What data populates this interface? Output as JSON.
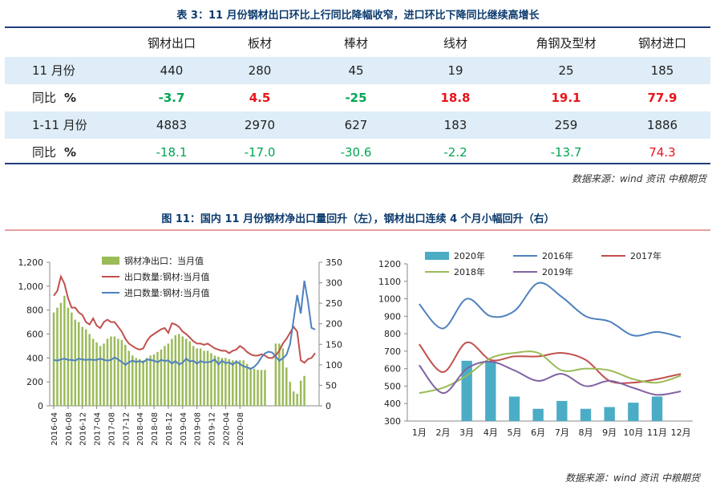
{
  "table": {
    "title": "表 3：11 月份钢材出口环比上行同比降幅收窄，进口环比下降同比继续高增长",
    "headers": [
      "钢材出口",
      "板材",
      "棒材",
      "线材",
      "角钢及型材",
      "钢材进口"
    ],
    "rows": [
      {
        "label": "11 月份",
        "unit": "",
        "values": [
          "440",
          "280",
          "45",
          "19",
          "25",
          "185"
        ],
        "colors": [
          "",
          "",
          "",
          "",
          "",
          ""
        ],
        "bold": false
      },
      {
        "label": "同比",
        "unit": "%",
        "values": [
          "-3.7",
          "4.5",
          "-25",
          "18.8",
          "19.1",
          "77.9"
        ],
        "colors": [
          "#00a651",
          "#e8141b",
          "#00a651",
          "#e8141b",
          "#e8141b",
          "#e8141b"
        ],
        "bold": true
      },
      {
        "label": "1-11 月份",
        "unit": "",
        "values": [
          "4883",
          "2970",
          "627",
          "183",
          "259",
          "1886"
        ],
        "colors": [
          "",
          "",
          "",
          "",
          "",
          ""
        ],
        "bold": false
      },
      {
        "label": "同比",
        "unit": "%",
        "values": [
          "-18.1",
          "-17.0",
          "-30.6",
          "-2.2",
          "-13.7",
          "74.3"
        ],
        "colors": [
          "#00a651",
          "#00a651",
          "#00a651",
          "#00a651",
          "#00a651",
          "#e8141b"
        ],
        "bold": false
      }
    ],
    "source": "数据来源：wind 资讯  中粮期货"
  },
  "figure": {
    "title": "图 11：国内 11 月份钢材净出口量回升（左），钢材出口连续 4 个月小幅回升（右）",
    "source": "数据来源：wind 资讯  中粮期货"
  },
  "chart_data": [
    {
      "type": "bar+line",
      "y_left_ticks": [
        "0",
        "200",
        "400",
        "600",
        "800",
        "1,000",
        "1,200"
      ],
      "y_left_range": [
        0,
        1200
      ],
      "y_right_ticks": [
        "0",
        "50",
        "100",
        "150",
        "200",
        "250",
        "300",
        "350"
      ],
      "y_right_range": [
        0,
        350
      ],
      "x_ticks": [
        "2016-04",
        "2016-08",
        "2016-12",
        "2017-04",
        "2017-08",
        "2017-12",
        "2018-04",
        "2018-08",
        "2018-12",
        "2019-04",
        "2019-08",
        "2019-12",
        "2020-04",
        "2020-08"
      ],
      "colors": {
        "bars": "#9bbb59",
        "export": "#c0504d",
        "import": "#4f81bd"
      },
      "series": [
        {
          "name": "钢材净出口：当月值",
          "axis": "left",
          "style": "bar",
          "values": [
            780,
            820,
            860,
            920,
            820,
            780,
            720,
            700,
            660,
            640,
            600,
            560,
            530,
            500,
            520,
            560,
            580,
            580,
            560,
            550,
            510,
            460,
            420,
            400,
            390,
            380,
            400,
            420,
            430,
            450,
            470,
            500,
            520,
            560,
            590,
            600,
            580,
            560,
            540,
            500,
            480,
            480,
            460,
            460,
            440,
            420,
            410,
            400,
            400,
            390,
            380,
            380,
            380,
            380,
            350,
            320,
            310,
            300,
            300,
            300,
            0,
            0,
            520,
            520,
            480,
            320,
            200,
            120,
            100,
            210,
            250
          ]
        },
        {
          "name": "出口数量:钢材:当月值",
          "axis": "left",
          "style": "line",
          "values": [
            920,
            960,
            1080,
            1020,
            900,
            820,
            820,
            780,
            760,
            700,
            680,
            730,
            670,
            650,
            700,
            720,
            700,
            700,
            660,
            620,
            560,
            520,
            500,
            480,
            470,
            480,
            540,
            580,
            600,
            620,
            640,
            650,
            610,
            690,
            680,
            660,
            620,
            600,
            570,
            540,
            520,
            520,
            510,
            520,
            500,
            480,
            470,
            460,
            460,
            440,
            460,
            470,
            500,
            480,
            450,
            430,
            420,
            420,
            430,
            420,
            400,
            400,
            420,
            460,
            520,
            560,
            610,
            660,
            620,
            380,
            360,
            390,
            400,
            440
          ]
        },
        {
          "name": "进口数量:钢材:当月值",
          "axis": "right",
          "style": "line",
          "values": [
            112,
            110,
            113,
            115,
            112,
            112,
            110,
            115,
            113,
            112,
            113,
            112,
            112,
            115,
            112,
            110,
            112,
            118,
            113,
            107,
            100,
            106,
            110,
            107,
            109,
            106,
            113,
            112,
            110,
            106,
            112,
            109,
            111,
            103,
            109,
            101,
            105,
            115,
            108,
            110,
            103,
            109,
            106,
            106,
            108,
            113,
            101,
            110,
            104,
            106,
            100,
            108,
            102,
            96,
            94,
            90,
            95,
            104,
            118,
            128,
            132,
            130,
            120,
            110,
            116,
            124,
            150,
            210,
            270,
            225,
            305,
            255,
            190,
            186
          ]
        }
      ]
    },
    {
      "type": "bar+line",
      "y_ticks": [
        "300",
        "400",
        "500",
        "600",
        "700",
        "800",
        "900",
        "1000",
        "1100",
        "1200"
      ],
      "y_range": [
        300,
        1200
      ],
      "categories": [
        "1月",
        "2月",
        "3月",
        "4月",
        "5月",
        "6月",
        "7月",
        "8月",
        "9月",
        "10月",
        "11月",
        "12月"
      ],
      "colors": {
        "2020年": "#4bacc6",
        "2016年": "#4f81bd",
        "2017年": "#c0504d",
        "2018年": "#9bbb59",
        "2019年": "#8064a2"
      },
      "series": [
        {
          "name": "2020年",
          "style": "bar",
          "values": [
            null,
            null,
            645,
            640,
            440,
            370,
            415,
            370,
            380,
            405,
            440,
            null
          ]
        },
        {
          "name": "2016年",
          "style": "line",
          "values": [
            970,
            830,
            1000,
            900,
            930,
            1090,
            1010,
            900,
            870,
            790,
            810,
            780
          ]
        },
        {
          "name": "2017年",
          "style": "line",
          "values": [
            740,
            580,
            750,
            650,
            670,
            670,
            690,
            650,
            530,
            520,
            540,
            570
          ]
        },
        {
          "name": "2018年",
          "style": "line",
          "values": [
            460,
            490,
            560,
            660,
            690,
            690,
            590,
            600,
            590,
            540,
            520,
            560
          ]
        },
        {
          "name": "2019年",
          "style": "line",
          "values": [
            620,
            460,
            600,
            640,
            590,
            530,
            570,
            500,
            530,
            490,
            450,
            470
          ]
        }
      ]
    }
  ]
}
